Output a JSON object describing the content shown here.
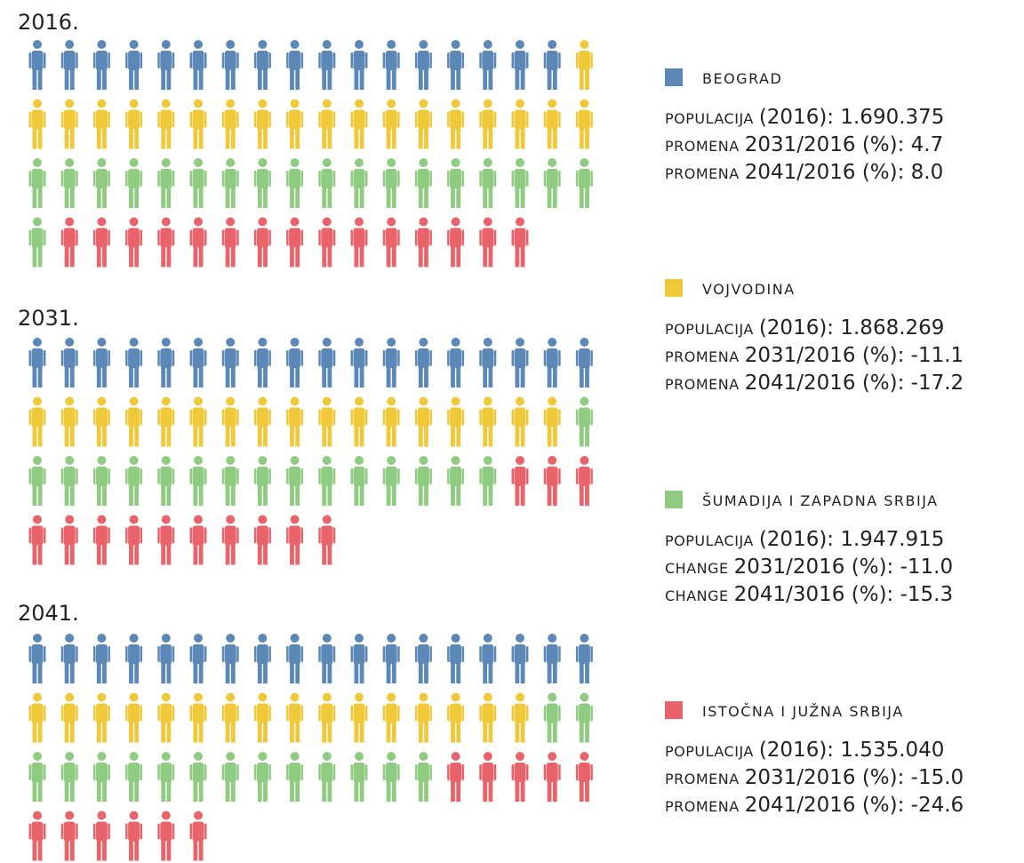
{
  "chart_data": {
    "type": "pictogram",
    "panels": [
      {
        "title": "2016.",
        "counts": [
          17,
          19,
          19,
          15
        ]
      },
      {
        "title": "2031.",
        "counts": [
          18,
          17,
          16,
          13
        ]
      },
      {
        "title": "2041.",
        "counts": [
          18,
          16,
          15,
          11
        ]
      }
    ],
    "series": [
      {
        "name": "BEOGRAD",
        "color": "#5b88b6",
        "stats": [
          {
            "label": "POPULACIJA",
            "text": "(2016): 1.690.375"
          },
          {
            "label": "PROMENA",
            "text": "2031/2016 (%): 4.7"
          },
          {
            "label": "PROMENA",
            "text": "2041/2016 (%): 8.0"
          }
        ]
      },
      {
        "name": "VOJVODINA",
        "color": "#f0c93b",
        "stats": [
          {
            "label": "POPULACIJA",
            "text": "(2016): 1.868.269"
          },
          {
            "label": "PROMENA",
            "text": "2031/2016 (%): -11.1"
          },
          {
            "label": "PROMENA",
            "text": "2041/2016 (%): -17.2"
          }
        ]
      },
      {
        "name": "ŠUMADIJA I ZAPADNA SRBIJA",
        "color": "#8fcb80",
        "stats": [
          {
            "label": "POPULACIJA",
            "text": "(2016): 1.947.915"
          },
          {
            "label": "CHANGE",
            "text": "2031/2016 (%): -11.0"
          },
          {
            "label": "CHANGE",
            "text": "2041/3016 (%): -15.3"
          }
        ]
      },
      {
        "name": "ISTOČNA I JUŽNA SRBIJA",
        "color": "#e8646a",
        "stats": [
          {
            "label": "POPULACIJA",
            "text": "(2016): 1.535.040"
          },
          {
            "label": "PROMENA",
            "text": "2031/2016 (%): -15.0"
          },
          {
            "label": "PROMENA",
            "text": "2041/2016 (%): -24.6"
          }
        ]
      }
    ]
  }
}
